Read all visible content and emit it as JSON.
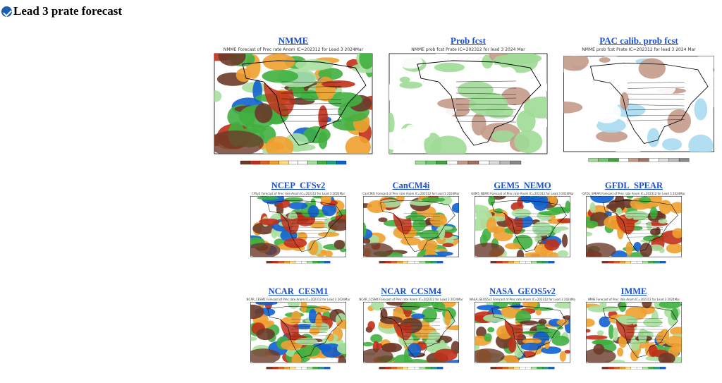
{
  "page": {
    "title": "Lead 3 prate forecast",
    "logo_icon": "noaa-logo-icon"
  },
  "panels_top": [
    {
      "label": "NMME",
      "fig_title": "NMME Forecast of Prec rate Anom IC=202312 for Lead 3 2024Mar",
      "type": "anom"
    },
    {
      "label": "Prob fcst",
      "fig_title": "NMME prob fcst Prate IC=202312 for lead 3 2024 Mar",
      "type": "prob"
    },
    {
      "label": "PAC calib. prob fcst",
      "fig_title": "NMME prob fcst Prate IC=202312 for lead 3 2024 Mar",
      "type": "calib"
    }
  ],
  "panels_mid": [
    {
      "label": "NCEP_CFSv2",
      "fig_title": "CFSv2 Forecast of Prec rate Anom IC=202312 for Lead 3 2024Mar"
    },
    {
      "label": "CanCM4i",
      "fig_title": "CanCM4i Forecast of Prec rate Anom IC=202312 for Lead 3 2024Mar"
    },
    {
      "label": "GEM5_NEMO",
      "fig_title": "GEM5_NEMO Forecast of Prec rate Anom IC=202312 for Lead 3 2024Mar"
    },
    {
      "label": "GFDL_SPEAR",
      "fig_title": "GFDL_SPEAR Forecast of Prec rate Anom IC=202312 for Lead 3 2024Mar"
    }
  ],
  "panels_bot": [
    {
      "label": "NCAR_CESM1",
      "fig_title": "NCAR_CESM1 Forecast of Prec rate Anom IC=202312 for Lead 3 2024Mar"
    },
    {
      "label": "NCAR_CCSM4",
      "fig_title": "NCAR_CCSM4 Forecast of Prec rate Anom IC=202312 for Lead 3 2024Mar"
    },
    {
      "label": "NASA_GEOS5v2",
      "fig_title": "NASA_GEOS5v2 Forecast of Prec rate Anom IC=202312 for Lead 3 2024Mar"
    },
    {
      "label": "IMME",
      "fig_title": "IMME Forecast of Prec rate Anom IC=202312 for Lead 3 2024Mar"
    }
  ],
  "colors": {
    "link": "#1a4fd0",
    "dry_dark": "#6b3a2a",
    "dry": "#c0301a",
    "dry_light": "#f0a030",
    "wet_light": "#a8e0a0",
    "wet": "#40b040",
    "wet_dark": "#1060d0",
    "above_prob": "#9edc96",
    "below_prob": "#c49a8a",
    "neutral_prob": "#bbbbbb"
  }
}
